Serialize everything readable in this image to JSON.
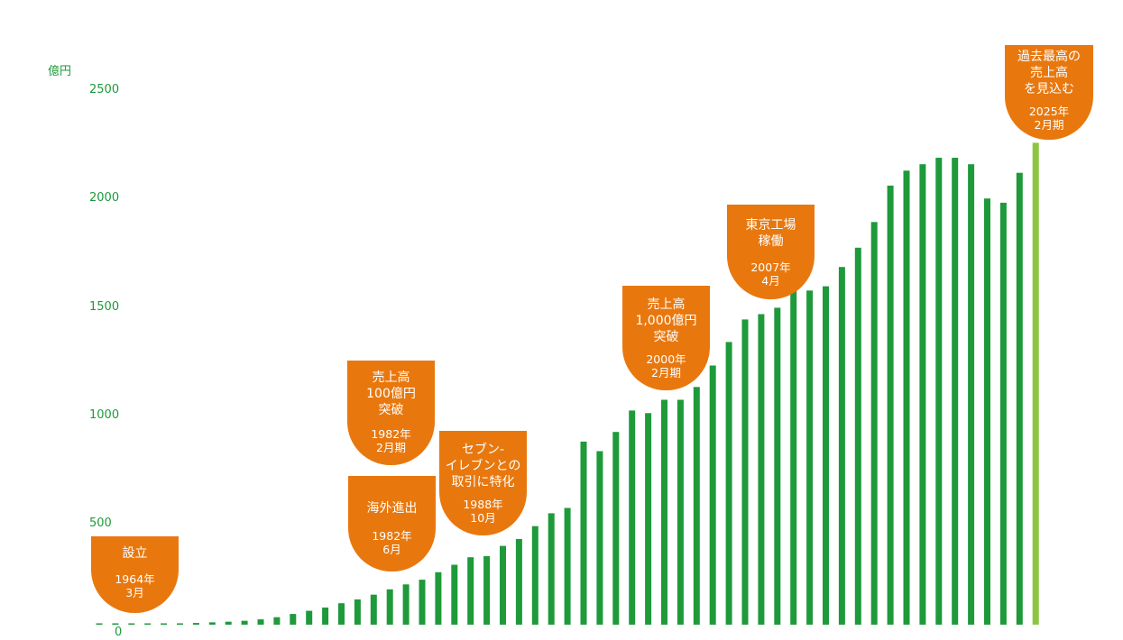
{
  "chart_data": {
    "type": "bar",
    "ylabel": "億円",
    "ylim": [
      0,
      2500
    ],
    "yticks": [
      0,
      500,
      1000,
      1500,
      2000,
      2500
    ],
    "grid": false,
    "series_color": "#1e9a3a",
    "highlight_color": "#8cc63f",
    "values": [
      2,
      2,
      2,
      3,
      5,
      6,
      8,
      11,
      14,
      18,
      25,
      35,
      50,
      65,
      80,
      100,
      118,
      140,
      165,
      188,
      210,
      245,
      280,
      315,
      320,
      368,
      400,
      460,
      520,
      545,
      855,
      810,
      900,
      1000,
      988,
      1050,
      1050,
      1110,
      1210,
      1320,
      1425,
      1450,
      1480,
      1560,
      1560,
      1580,
      1670,
      1760,
      1880,
      2050,
      2120,
      2150,
      2180,
      2180,
      2150,
      1990,
      1970,
      2110,
      2250
    ],
    "highlight_last": true,
    "annotations": [
      {
        "main": "設立",
        "date": "1964年\n3月"
      },
      {
        "main": "海外進出",
        "date": "1982年\n6月"
      },
      {
        "main": "売上高\n100億円\n突破",
        "date": "1982年\n2月期"
      },
      {
        "main": "セブン-\nイレブンとの\n取引に特化",
        "date": "1988年\n10月"
      },
      {
        "main": "売上高\n1,000億円\n突破",
        "date": "2000年\n2月期"
      },
      {
        "main": "東京工場\n稼働",
        "date": "2007年\n4月"
      },
      {
        "main": "過去最高の\n売上高\nを見込む",
        "date": "2025年\n2月期"
      }
    ]
  }
}
